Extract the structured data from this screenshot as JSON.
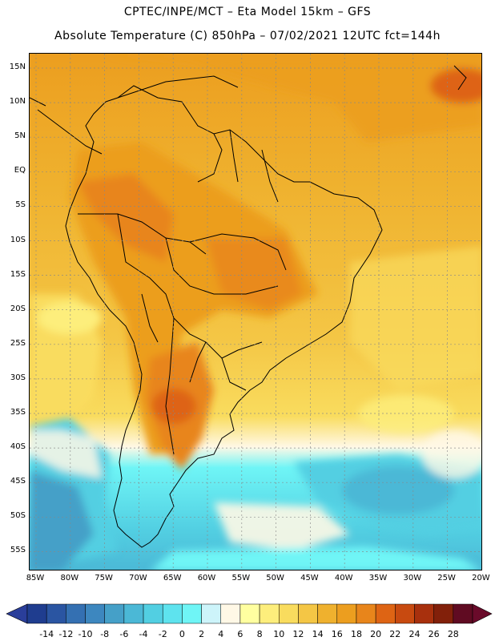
{
  "header": {
    "line1": "CPTEC/INPE/MCT –  Eta Model 15km – GFS",
    "line2": "Absolute Temperature (C) 850hPa – 07/02/2021 12UTC fct=144h"
  },
  "map": {
    "lat_labels": [
      "15N",
      "10N",
      "5N",
      "EQ",
      "5S",
      "10S",
      "15S",
      "20S",
      "25S",
      "30S",
      "35S",
      "40S",
      "45S",
      "50S",
      "55S"
    ],
    "lon_labels": [
      "85W",
      "80W",
      "75W",
      "70W",
      "65W",
      "60W",
      "55W",
      "50W",
      "45W",
      "40W",
      "35W",
      "30W",
      "25W",
      "20W"
    ]
  },
  "legend": {
    "ticks": [
      "-14",
      "-12",
      "-10",
      "-8",
      "-6",
      "-4",
      "-2",
      "0",
      "2",
      "4",
      "6",
      "8",
      "10",
      "12",
      "14",
      "16",
      "18",
      "20",
      "22",
      "24",
      "26",
      "28"
    ],
    "colors": [
      "#1f3d8f",
      "#2a55a2",
      "#3470b2",
      "#3d87bf",
      "#45a0c8",
      "#4bb8d6",
      "#52cfe2",
      "#5ee3ee",
      "#6ff5f6",
      "#cdf4fa",
      "#fff8e6",
      "#ffffa0",
      "#fdee7c",
      "#f9dc5e",
      "#f4c645",
      "#efb12e",
      "#ec9e1f",
      "#e8851b",
      "#de6414",
      "#c84a10",
      "#a8300d",
      "#82200a",
      "#600b22"
    ],
    "low_color": "#2a3e9a",
    "high_color": "#6a0a2a"
  }
}
